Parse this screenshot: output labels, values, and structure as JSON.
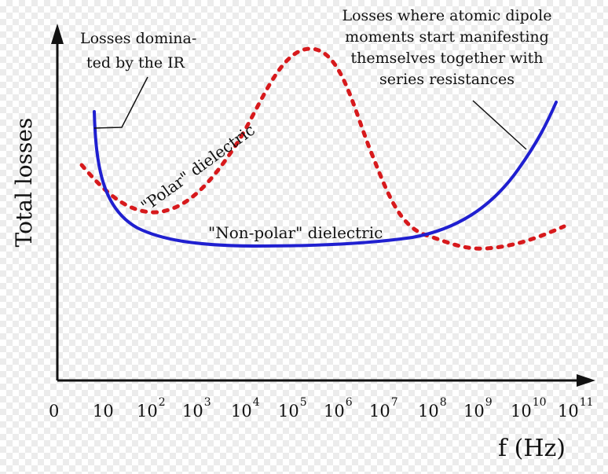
{
  "axes": {
    "y_label": "Total losses",
    "x_label": "f (Hz)",
    "x_ticks": [
      {
        "base": "0",
        "exp": ""
      },
      {
        "base": "10",
        "exp": ""
      },
      {
        "base": "10",
        "exp": "2"
      },
      {
        "base": "10",
        "exp": "3"
      },
      {
        "base": "10",
        "exp": "4"
      },
      {
        "base": "10",
        "exp": "5"
      },
      {
        "base": "10",
        "exp": "6"
      },
      {
        "base": "10",
        "exp": "7"
      },
      {
        "base": "10",
        "exp": "8"
      },
      {
        "base": "10",
        "exp": "9"
      },
      {
        "base": "10",
        "exp": "10"
      },
      {
        "base": "10",
        "exp": "11"
      }
    ],
    "x_scale": "log"
  },
  "annotations": {
    "ir_line1": "Losses domina-",
    "ir_line2": "ted by the IR",
    "dipole_line1": "Losses where atomic dipole",
    "dipole_line2": "moments start manifesting",
    "dipole_line3": "themselves together with",
    "dipole_line4": "series resistances"
  },
  "curves": {
    "polar": {
      "label": "\"Polar\"  dielectric",
      "color": "#d7191c",
      "style": "dotted"
    },
    "nonpolar": {
      "label": "\"Non-polar\"  dielectric",
      "color": "#1f1fd0",
      "style": "solid"
    }
  },
  "colors": {
    "axis": "#111111",
    "background": "#ffffff"
  }
}
